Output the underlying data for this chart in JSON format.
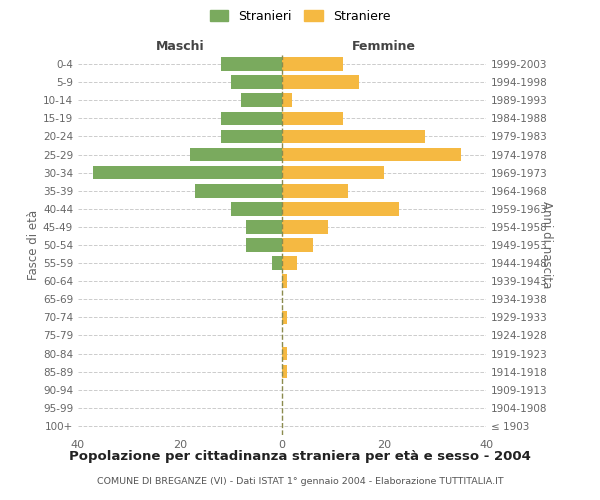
{
  "age_groups": [
    "100+",
    "95-99",
    "90-94",
    "85-89",
    "80-84",
    "75-79",
    "70-74",
    "65-69",
    "60-64",
    "55-59",
    "50-54",
    "45-49",
    "40-44",
    "35-39",
    "30-34",
    "25-29",
    "20-24",
    "15-19",
    "10-14",
    "5-9",
    "0-4"
  ],
  "birth_years": [
    "≤ 1903",
    "1904-1908",
    "1909-1913",
    "1914-1918",
    "1919-1923",
    "1924-1928",
    "1929-1933",
    "1934-1938",
    "1939-1943",
    "1944-1948",
    "1949-1953",
    "1954-1958",
    "1959-1963",
    "1964-1968",
    "1969-1973",
    "1974-1978",
    "1979-1983",
    "1984-1988",
    "1989-1993",
    "1994-1998",
    "1999-2003"
  ],
  "maschi": [
    0,
    0,
    0,
    0,
    0,
    0,
    0,
    0,
    0,
    2,
    7,
    7,
    10,
    17,
    37,
    18,
    12,
    12,
    8,
    10,
    12
  ],
  "femmine": [
    0,
    0,
    0,
    1,
    1,
    0,
    1,
    0,
    1,
    3,
    6,
    9,
    23,
    13,
    20,
    35,
    28,
    12,
    2,
    15,
    12
  ],
  "color_maschi": "#7aaa5e",
  "color_femmine": "#f5b942",
  "color_center_line": "#8b8b4e",
  "xlim": 40,
  "title": "Popolazione per cittadinanza straniera per età e sesso - 2004",
  "subtitle": "COMUNE DI BREGANZE (VI) - Dati ISTAT 1° gennaio 2004 - Elaborazione TUTTITALIA.IT",
  "ylabel_left": "Fasce di età",
  "ylabel_right": "Anni di nascita",
  "legend_stranieri": "Stranieri",
  "legend_straniere": "Straniere",
  "bg_color": "#ffffff",
  "grid_color": "#cccccc",
  "label_maschi": "Maschi",
  "label_femmine": "Femmine"
}
